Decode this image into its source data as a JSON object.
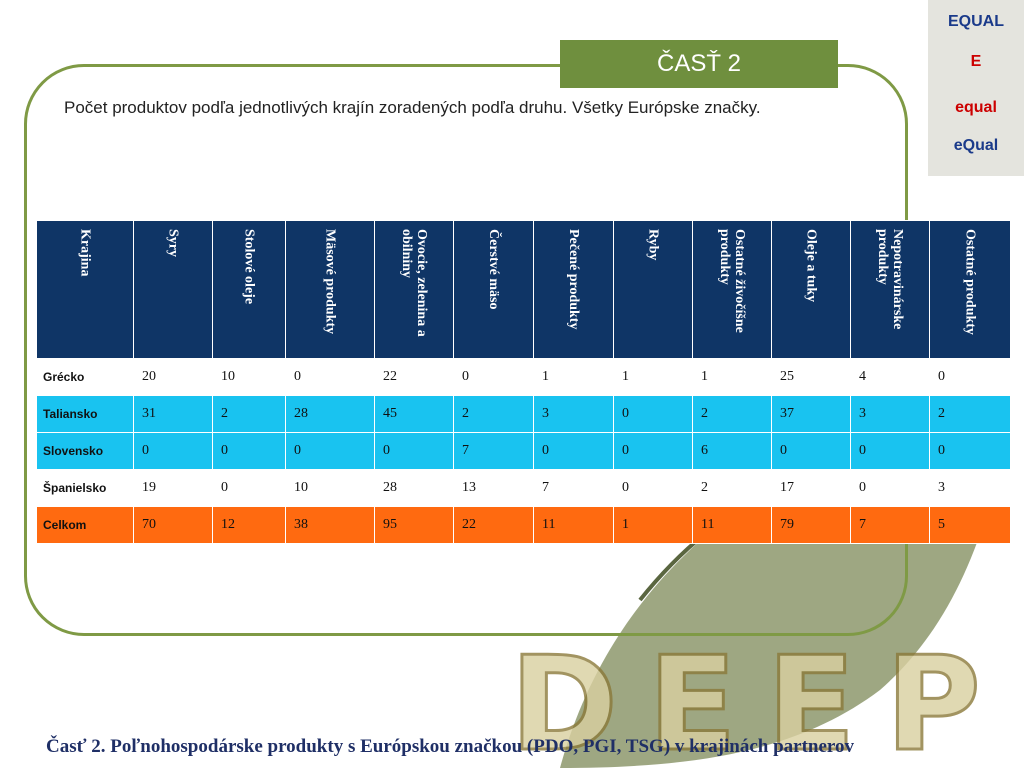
{
  "section": "ČASŤ 2",
  "subtitle": "Počet produktov podľa jednotlivých krajín zoradených podľa druhu. Všetky Európske značky.",
  "logos": [
    "EQUAL",
    "E",
    "equal",
    "eQual"
  ],
  "table": {
    "header": [
      "Krajina",
      "Syry",
      "Stolové oleje",
      "Mäsové produkty",
      "Ovocie, zelenina a obilniny",
      "Čerstvé mäso",
      "Pečené produkty",
      "Ryby",
      "Ostatné živočíšne produkty",
      "Oleje a tuky",
      "Nepotravinárske produkty",
      "Ostatné produkty"
    ],
    "rows": [
      [
        "Grécko",
        20,
        10,
        0,
        22,
        0,
        1,
        1,
        1,
        25,
        4,
        0
      ],
      [
        "Taliansko",
        31,
        2,
        28,
        45,
        2,
        3,
        0,
        2,
        37,
        3,
        2
      ],
      [
        "Slovensko",
        0,
        0,
        0,
        0,
        7,
        0,
        0,
        6,
        0,
        0,
        0
      ],
      [
        "Španielsko",
        19,
        0,
        10,
        28,
        13,
        7,
        0,
        2,
        17,
        0,
        3
      ],
      [
        "Celkom",
        70,
        12,
        38,
        95,
        22,
        11,
        1,
        11,
        79,
        7,
        5
      ]
    ]
  },
  "watermark": "DEEP",
  "footer": "Časť 2. Poľnohospodárske produkty s Európskou značkou (PDO, PGI, TSG) v krajinách partnerov"
}
